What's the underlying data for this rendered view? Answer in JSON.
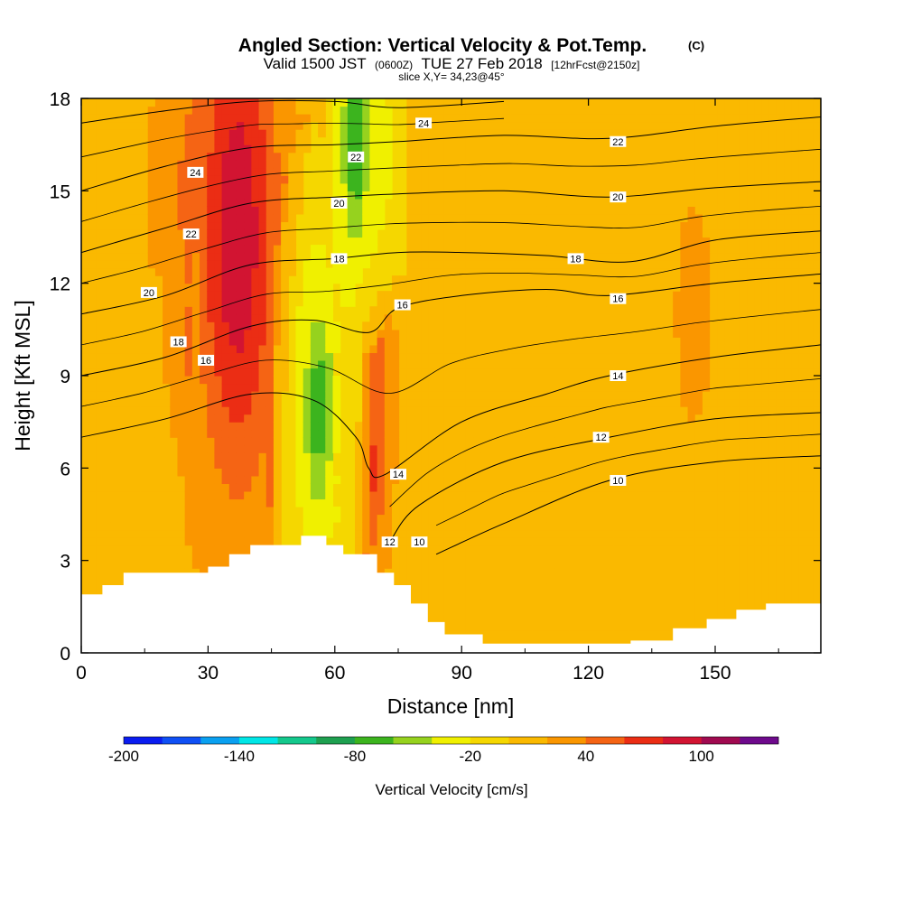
{
  "chart_data": {
    "type": "contour",
    "title": "Angled Section: Vertical Velocity & Pot.Temp.",
    "title_units": "(C)",
    "subtitle": {
      "valid": "Valid 1500 JST",
      "utc": "(0600Z)",
      "date": "TUE 27 Feb 2018",
      "forecast": "[12hrFcst@2150z]"
    },
    "slice_label": "slice X,Y= 34,23@45°",
    "xlabel": "Distance [nm]",
    "ylabel": "Height [Kft MSL]",
    "xlim": [
      0,
      175
    ],
    "ylim": [
      0,
      18
    ],
    "xticks": [
      "0",
      "30",
      "60",
      "90",
      "120",
      "150"
    ],
    "yticks": [
      "0",
      "3",
      "6",
      "9",
      "12",
      "15",
      "18"
    ],
    "colorbar": {
      "label": "Vertical Velocity [cm/s]",
      "tick_labels": [
        "-200",
        "-140",
        "-80",
        "-20",
        "40",
        "100"
      ],
      "levels": [
        -200,
        -180,
        -160,
        -140,
        -120,
        -100,
        -80,
        -60,
        -40,
        -20,
        0,
        20,
        40,
        60,
        80,
        100,
        120,
        140
      ],
      "colors": [
        "#0a1cf0",
        "#0f50f5",
        "#0aa0f0",
        "#00e6e6",
        "#14c88c",
        "#1ea050",
        "#3cb41e",
        "#96d21e",
        "#f0f000",
        "#f5d700",
        "#fab900",
        "#fa9600",
        "#f56414",
        "#eb2d14",
        "#d21432",
        "#a00a50",
        "#6e0a8c"
      ]
    },
    "terrain_kft": [
      [
        0,
        1.9
      ],
      [
        5,
        2.2
      ],
      [
        10,
        2.6
      ],
      [
        20,
        2.6
      ],
      [
        30,
        2.8
      ],
      [
        35,
        3.2
      ],
      [
        40,
        3.5
      ],
      [
        47,
        3.5
      ],
      [
        52,
        3.8
      ],
      [
        58,
        3.5
      ],
      [
        62,
        3.2
      ],
      [
        68,
        3.2
      ],
      [
        70,
        2.6
      ],
      [
        74,
        2.2
      ],
      [
        78,
        1.6
      ],
      [
        82,
        1.0
      ],
      [
        86,
        0.6
      ],
      [
        95,
        0.3
      ],
      [
        130,
        0.4
      ],
      [
        140,
        0.8
      ],
      [
        148,
        1.1
      ],
      [
        155,
        1.4
      ],
      [
        162,
        1.6
      ],
      [
        175,
        1.6
      ]
    ],
    "velocity_features": [
      {
        "x": 37,
        "y": 13.5,
        "sx": 7,
        "sy": 6,
        "v": 95
      },
      {
        "x": 40,
        "y": 11,
        "sx": 12,
        "sy": 5,
        "v": 60
      },
      {
        "x": 30,
        "y": 15,
        "sx": 10,
        "sy": 4,
        "v": 45
      },
      {
        "x": 34,
        "y": 6,
        "sx": 8,
        "sy": 3,
        "v": 40
      },
      {
        "x": 44,
        "y": 7,
        "sx": 6,
        "sy": 3,
        "v": 30
      },
      {
        "x": 68,
        "y": 8,
        "sx": 1.6,
        "sy": 3.5,
        "v": 100
      },
      {
        "x": 69,
        "y": 8,
        "sx": 3.5,
        "sy": 4,
        "v": 55
      },
      {
        "x": 56,
        "y": 8,
        "sx": 3.5,
        "sy": 3.5,
        "v": -70
      },
      {
        "x": 54,
        "y": 8,
        "sx": 6,
        "sy": 6,
        "v": -30
      },
      {
        "x": 65,
        "y": 16.5,
        "sx": 3,
        "sy": 3,
        "v": -75
      },
      {
        "x": 67,
        "y": 16,
        "sx": 6,
        "sy": 4,
        "v": -40
      },
      {
        "x": 62,
        "y": 11,
        "sx": 5,
        "sy": 7,
        "v": -18
      },
      {
        "x": 145,
        "y": 11,
        "sx": 3,
        "sy": 2.5,
        "v": 40
      },
      {
        "x": 142,
        "y": 8,
        "sx": 14,
        "sy": 5,
        "v": 18
      },
      {
        "x": 160,
        "y": 12,
        "sx": 12,
        "sy": 8,
        "v": 16
      },
      {
        "x": 0,
        "y": 9,
        "sx": 8,
        "sy": 8,
        "v": 18
      },
      {
        "x": 10,
        "y": 3.5,
        "sx": 10,
        "sy": 2.5,
        "v": 18
      },
      {
        "x": 95,
        "y": 1.5,
        "sx": 8,
        "sy": 2,
        "v": 16
      },
      {
        "x": 112,
        "y": 2.5,
        "sx": 10,
        "sy": 2.5,
        "v": 14
      },
      {
        "x": 160,
        "y": 3,
        "sx": 10,
        "sy": 3,
        "v": 18
      },
      {
        "x": 14,
        "y": 11,
        "sx": 6,
        "sy": 2,
        "v": 16
      }
    ],
    "theta_isolines_C": [
      {
        "value": 10,
        "label": "10",
        "points": [
          [
            84,
            3.2
          ],
          [
            100,
            4.2
          ],
          [
            125,
            5.6
          ],
          [
            150,
            6.2
          ],
          [
            175,
            6.4
          ]
        ]
      },
      {
        "value": 12,
        "label": "12",
        "points": [
          [
            73,
            3.6
          ],
          [
            80,
            4.8
          ],
          [
            100,
            6.2
          ],
          [
            125,
            7.0
          ],
          [
            150,
            7.6
          ],
          [
            175,
            7.8
          ]
        ]
      },
      {
        "value": 14,
        "label": "14",
        "points": [
          [
            0,
            7.0
          ],
          [
            20,
            7.6
          ],
          [
            40,
            8.4
          ],
          [
            55,
            8.2
          ],
          [
            65,
            7.0
          ],
          [
            68,
            6.0
          ],
          [
            72,
            5.8
          ],
          [
            90,
            7.5
          ],
          [
            110,
            8.4
          ],
          [
            125,
            9.0
          ],
          [
            150,
            9.6
          ],
          [
            175,
            10.0
          ]
        ]
      },
      {
        "value": 16,
        "label": "16",
        "points": [
          [
            0,
            9.0
          ],
          [
            20,
            9.6
          ],
          [
            40,
            10.6
          ],
          [
            55,
            10.8
          ],
          [
            68,
            10.4
          ],
          [
            75,
            11.2
          ],
          [
            90,
            11.6
          ],
          [
            110,
            11.8
          ],
          [
            125,
            11.6
          ],
          [
            150,
            12.0
          ],
          [
            175,
            12.3
          ]
        ]
      },
      {
        "value": 18,
        "label": "18",
        "points": [
          [
            0,
            11.0
          ],
          [
            20,
            11.6
          ],
          [
            40,
            12.6
          ],
          [
            60,
            12.8
          ],
          [
            75,
            13.0
          ],
          [
            90,
            13.0
          ],
          [
            110,
            12.9
          ],
          [
            130,
            12.7
          ],
          [
            150,
            13.4
          ],
          [
            175,
            13.7
          ]
        ]
      },
      {
        "value": 20,
        "label": "20",
        "points": [
          [
            0,
            13.0
          ],
          [
            20,
            13.8
          ],
          [
            40,
            14.6
          ],
          [
            60,
            14.8
          ],
          [
            75,
            14.9
          ],
          [
            100,
            15.0
          ],
          [
            125,
            14.8
          ],
          [
            150,
            15.1
          ],
          [
            175,
            15.3
          ]
        ]
      },
      {
        "value": 22,
        "label": "22",
        "points": [
          [
            0,
            15.0
          ],
          [
            20,
            15.8
          ],
          [
            40,
            16.4
          ],
          [
            60,
            16.5
          ],
          [
            75,
            16.6
          ],
          [
            100,
            16.8
          ],
          [
            125,
            16.7
          ],
          [
            150,
            17.1
          ],
          [
            175,
            17.4
          ]
        ]
      },
      {
        "value": 24,
        "label": "24",
        "points": [
          [
            0,
            17.2
          ],
          [
            20,
            17.6
          ],
          [
            40,
            17.9
          ],
          [
            60,
            17.9
          ],
          [
            75,
            17.7
          ],
          [
            100,
            17.9
          ]
        ]
      }
    ],
    "isoline_labels": [
      {
        "text": "24",
        "x": 27,
        "y": 15.6
      },
      {
        "text": "22",
        "x": 26,
        "y": 13.6
      },
      {
        "text": "20",
        "x": 16,
        "y": 11.7
      },
      {
        "text": "18",
        "x": 23,
        "y": 10.1
      },
      {
        "text": "16",
        "x": 29.5,
        "y": 9.5
      },
      {
        "text": "22",
        "x": 65,
        "y": 16.1
      },
      {
        "text": "24",
        "x": 81,
        "y": 17.2
      },
      {
        "text": "20",
        "x": 61,
        "y": 14.6
      },
      {
        "text": "18",
        "x": 61,
        "y": 12.8
      },
      {
        "text": "16",
        "x": 76,
        "y": 11.3
      },
      {
        "text": "14",
        "x": 75,
        "y": 5.8
      },
      {
        "text": "12",
        "x": 73,
        "y": 3.6
      },
      {
        "text": "10",
        "x": 80,
        "y": 3.6
      },
      {
        "text": "22",
        "x": 127,
        "y": 16.6
      },
      {
        "text": "20",
        "x": 127,
        "y": 14.8
      },
      {
        "text": "18",
        "x": 117,
        "y": 12.8
      },
      {
        "text": "16",
        "x": 127,
        "y": 11.5
      },
      {
        "text": "14",
        "x": 127,
        "y": 9.0
      },
      {
        "text": "12",
        "x": 123,
        "y": 7.0
      },
      {
        "text": "10",
        "x": 127,
        "y": 5.6
      }
    ]
  }
}
